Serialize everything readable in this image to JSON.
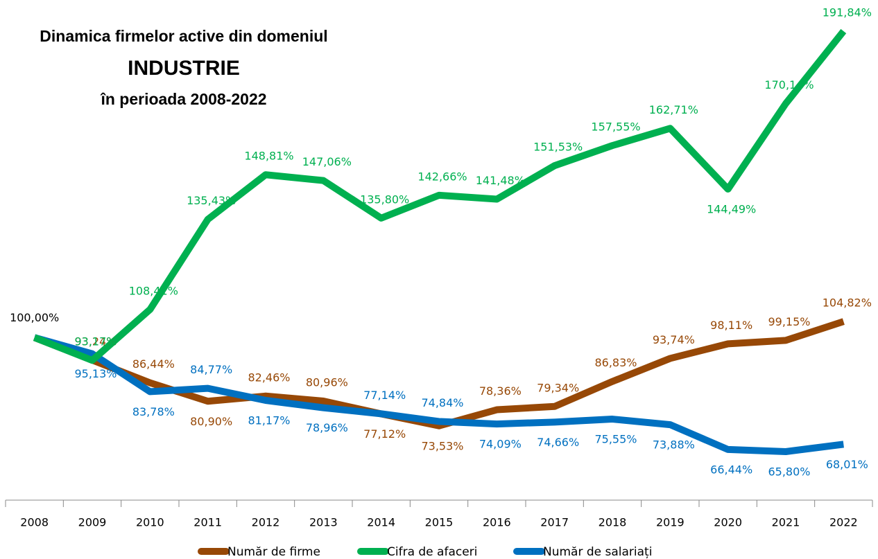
{
  "chart_data": {
    "type": "line",
    "title": [
      "Dinamica firmelor active din domeniul",
      "INDUSTRIE",
      "în perioada 2008-2022"
    ],
    "categories": [
      "2008",
      "2009",
      "2010",
      "2011",
      "2012",
      "2013",
      "2014",
      "2015",
      "2016",
      "2017",
      "2018",
      "2019",
      "2020",
      "2021",
      "2022"
    ],
    "series": [
      {
        "name": "Număr de firme",
        "color": "#974806",
        "values": [
          100,
          93.24,
          86.44,
          80.9,
          82.46,
          80.96,
          77.12,
          73.53,
          78.36,
          79.34,
          86.83,
          93.74,
          98.11,
          99.15,
          104.82
        ],
        "value_labels": [
          "100,00%",
          "93,24%",
          "86,44%",
          "80,90%",
          "82,46%",
          "80,96%",
          "77,12%",
          "73,53%",
          "78,36%",
          "79,34%",
          "86,83%",
          "93,74%",
          "98,11%",
          "99,15%",
          "104,82%"
        ]
      },
      {
        "name": "Cifra de afaceri",
        "color": "#00b050",
        "values": [
          100,
          93.17,
          108.41,
          135.43,
          148.81,
          147.06,
          135.8,
          142.66,
          141.48,
          151.53,
          157.55,
          162.71,
          144.49,
          170.14,
          191.84
        ],
        "value_labels": [
          null,
          "93,17%",
          "108,41%",
          "135,43%",
          "148,81%",
          "147,06%",
          "135,80%",
          "142,66%",
          "141,48%",
          "151,53%",
          "157,55%",
          "162,71%",
          "144,49%",
          "170,14%",
          "191,84%"
        ]
      },
      {
        "name": "Număr de salariați",
        "color": "#0070c0",
        "values": [
          100,
          95.13,
          83.78,
          84.77,
          81.17,
          78.96,
          77.14,
          74.84,
          74.09,
          74.66,
          75.55,
          73.88,
          66.44,
          65.8,
          68.01
        ],
        "value_labels": [
          null,
          "95,13%",
          "83,78%",
          "84,77%",
          "81,17%",
          "78,96%",
          "77,14%",
          "74,84%",
          "74,09%",
          "74,66%",
          "75,55%",
          "73,88%",
          "66,44%",
          "65,80%",
          "68,01%"
        ]
      }
    ],
    "legend": "bottom"
  }
}
